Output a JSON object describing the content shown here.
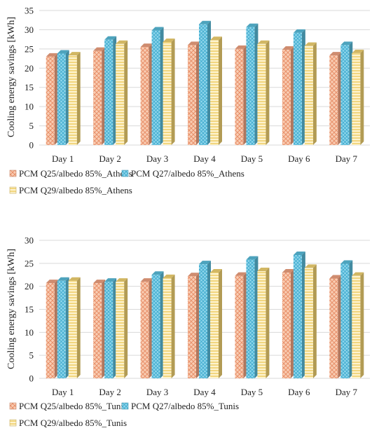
{
  "chart_data": [
    {
      "type": "bar",
      "title": "",
      "xlabel": "",
      "ylabel": "Cooling energy savings [kWh]",
      "ylim": [
        0,
        35
      ],
      "yticks": [
        0,
        5,
        10,
        15,
        20,
        25,
        30,
        35
      ],
      "grid": true,
      "legend_position": "bottom",
      "categories": [
        "Day 1",
        "Day 2",
        "Day 3",
        "Day 4",
        "Day 5",
        "Day 6",
        "Day 7"
      ],
      "series": [
        {
          "name": "PCM Q25/albedo 85%_Athens",
          "color": "#f4a582",
          "values": [
            23.0,
            24.5,
            25.5,
            26.0,
            25.0,
            24.8,
            23.3
          ]
        },
        {
          "name": "PCM Q27/albedo 85%_Athens",
          "color": "#5bc0de",
          "values": [
            23.8,
            27.4,
            29.8,
            31.4,
            30.7,
            29.2,
            26.0
          ]
        },
        {
          "name": "PCM Q29/albedo 85%_Athens",
          "color": "#f7d774",
          "values": [
            23.3,
            26.3,
            26.8,
            27.3,
            26.3,
            25.8,
            23.9
          ]
        }
      ]
    },
    {
      "type": "bar",
      "title": "",
      "xlabel": "",
      "ylabel": "Cooling energy savings [kWh]",
      "ylim": [
        0,
        30
      ],
      "yticks": [
        0,
        5,
        10,
        15,
        20,
        25,
        30
      ],
      "grid": true,
      "legend_position": "bottom",
      "categories": [
        "Day 1",
        "Day 2",
        "Day 3",
        "Day 4",
        "Day 5",
        "Day 6",
        "Day 7"
      ],
      "series": [
        {
          "name": "PCM Q25/albedo 85%_Tunis",
          "color": "#f4a582",
          "values": [
            20.7,
            20.7,
            21.0,
            22.2,
            22.3,
            23.0,
            21.7
          ]
        },
        {
          "name": "PCM Q27/albedo 85%_Tunis",
          "color": "#5bc0de",
          "values": [
            21.2,
            21.0,
            22.5,
            24.8,
            25.8,
            26.8,
            24.9
          ]
        },
        {
          "name": "PCM Q29/albedo 85%_Tunis",
          "color": "#f7d774",
          "values": [
            21.2,
            21.0,
            21.8,
            23.0,
            23.3,
            24.0,
            22.3
          ]
        }
      ]
    }
  ]
}
